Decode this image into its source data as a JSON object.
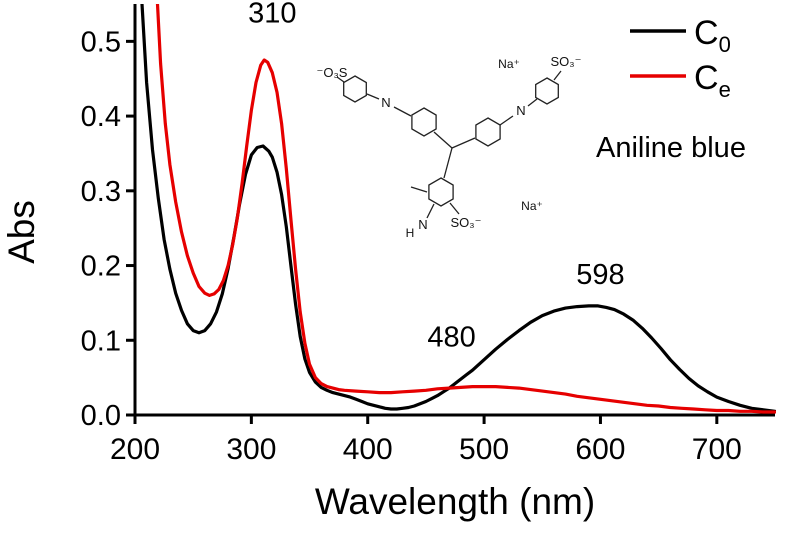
{
  "chart_data": {
    "type": "line",
    "title": "",
    "xlabel": "Wavelength (nm)",
    "ylabel": "Abs",
    "xlim": [
      200,
      750
    ],
    "ylim": [
      0,
      0.55
    ],
    "x_ticks": [
      200,
      300,
      400,
      500,
      600,
      700
    ],
    "y_ticks": [
      0.0,
      0.1,
      0.2,
      0.3,
      0.4,
      0.5
    ],
    "y_tick_labels": [
      "0.0",
      "0.1",
      "0.2",
      "0.3",
      "0.4",
      "0.5"
    ],
    "grid": false,
    "legend": {
      "position": "top-right",
      "note": "Aniline blue"
    },
    "series": [
      {
        "name": "C0",
        "legend_label": "C",
        "legend_sub": "0",
        "color": "#000000",
        "points": [
          [
            200,
            0.85
          ],
          [
            203,
            0.66
          ],
          [
            206,
            0.55
          ],
          [
            210,
            0.445
          ],
          [
            215,
            0.355
          ],
          [
            220,
            0.29
          ],
          [
            225,
            0.235
          ],
          [
            230,
            0.195
          ],
          [
            235,
            0.163
          ],
          [
            240,
            0.14
          ],
          [
            245,
            0.122
          ],
          [
            250,
            0.113
          ],
          [
            255,
            0.11
          ],
          [
            260,
            0.113
          ],
          [
            265,
            0.122
          ],
          [
            270,
            0.138
          ],
          [
            275,
            0.162
          ],
          [
            280,
            0.196
          ],
          [
            285,
            0.238
          ],
          [
            290,
            0.283
          ],
          [
            295,
            0.322
          ],
          [
            300,
            0.348
          ],
          [
            305,
            0.358
          ],
          [
            310,
            0.36
          ],
          [
            315,
            0.353
          ],
          [
            318,
            0.345
          ],
          [
            322,
            0.325
          ],
          [
            326,
            0.295
          ],
          [
            330,
            0.252
          ],
          [
            334,
            0.2
          ],
          [
            338,
            0.148
          ],
          [
            342,
            0.105
          ],
          [
            346,
            0.075
          ],
          [
            350,
            0.057
          ],
          [
            355,
            0.044
          ],
          [
            360,
            0.037
          ],
          [
            365,
            0.033
          ],
          [
            370,
            0.03
          ],
          [
            375,
            0.028
          ],
          [
            380,
            0.026
          ],
          [
            385,
            0.024
          ],
          [
            390,
            0.021
          ],
          [
            395,
            0.018
          ],
          [
            400,
            0.015
          ],
          [
            405,
            0.013
          ],
          [
            410,
            0.011
          ],
          [
            415,
            0.009
          ],
          [
            420,
            0.008
          ],
          [
            425,
            0.008
          ],
          [
            430,
            0.009
          ],
          [
            435,
            0.01
          ],
          [
            440,
            0.012
          ],
          [
            445,
            0.015
          ],
          [
            450,
            0.018
          ],
          [
            455,
            0.022
          ],
          [
            460,
            0.026
          ],
          [
            465,
            0.031
          ],
          [
            470,
            0.036
          ],
          [
            475,
            0.042
          ],
          [
            480,
            0.048
          ],
          [
            485,
            0.054
          ],
          [
            490,
            0.06
          ],
          [
            495,
            0.067
          ],
          [
            500,
            0.074
          ],
          [
            510,
            0.088
          ],
          [
            520,
            0.101
          ],
          [
            530,
            0.113
          ],
          [
            540,
            0.124
          ],
          [
            550,
            0.133
          ],
          [
            560,
            0.139
          ],
          [
            570,
            0.143
          ],
          [
            580,
            0.145
          ],
          [
            590,
            0.146
          ],
          [
            598,
            0.146
          ],
          [
            605,
            0.144
          ],
          [
            612,
            0.141
          ],
          [
            620,
            0.135
          ],
          [
            628,
            0.127
          ],
          [
            636,
            0.116
          ],
          [
            644,
            0.103
          ],
          [
            652,
            0.089
          ],
          [
            660,
            0.074
          ],
          [
            668,
            0.061
          ],
          [
            676,
            0.049
          ],
          [
            684,
            0.039
          ],
          [
            692,
            0.031
          ],
          [
            700,
            0.024
          ],
          [
            710,
            0.018
          ],
          [
            720,
            0.013
          ],
          [
            730,
            0.009
          ],
          [
            740,
            0.007
          ],
          [
            750,
            0.005
          ]
        ]
      },
      {
        "name": "Ce",
        "legend_label": "C",
        "legend_sub": "e",
        "color": "#e60000",
        "points": [
          [
            213,
            0.85
          ],
          [
            216,
            0.68
          ],
          [
            219,
            0.56
          ],
          [
            222,
            0.47
          ],
          [
            226,
            0.39
          ],
          [
            230,
            0.335
          ],
          [
            235,
            0.285
          ],
          [
            240,
            0.245
          ],
          [
            245,
            0.213
          ],
          [
            250,
            0.19
          ],
          [
            255,
            0.172
          ],
          [
            260,
            0.163
          ],
          [
            264,
            0.16
          ],
          [
            268,
            0.162
          ],
          [
            272,
            0.168
          ],
          [
            276,
            0.18
          ],
          [
            280,
            0.2
          ],
          [
            284,
            0.228
          ],
          [
            288,
            0.264
          ],
          [
            292,
            0.31
          ],
          [
            296,
            0.36
          ],
          [
            300,
            0.408
          ],
          [
            304,
            0.445
          ],
          [
            308,
            0.468
          ],
          [
            311,
            0.475
          ],
          [
            314,
            0.472
          ],
          [
            318,
            0.458
          ],
          [
            322,
            0.432
          ],
          [
            326,
            0.39
          ],
          [
            330,
            0.33
          ],
          [
            334,
            0.262
          ],
          [
            338,
            0.195
          ],
          [
            342,
            0.138
          ],
          [
            346,
            0.096
          ],
          [
            350,
            0.068
          ],
          [
            355,
            0.05
          ],
          [
            360,
            0.042
          ],
          [
            365,
            0.038
          ],
          [
            370,
            0.036
          ],
          [
            375,
            0.034
          ],
          [
            380,
            0.033
          ],
          [
            390,
            0.032
          ],
          [
            400,
            0.031
          ],
          [
            410,
            0.03
          ],
          [
            420,
            0.03
          ],
          [
            430,
            0.031
          ],
          [
            440,
            0.032
          ],
          [
            450,
            0.033
          ],
          [
            460,
            0.035
          ],
          [
            470,
            0.036
          ],
          [
            480,
            0.037
          ],
          [
            490,
            0.038
          ],
          [
            500,
            0.038
          ],
          [
            510,
            0.038
          ],
          [
            520,
            0.037
          ],
          [
            530,
            0.036
          ],
          [
            540,
            0.034
          ],
          [
            550,
            0.032
          ],
          [
            560,
            0.03
          ],
          [
            570,
            0.028
          ],
          [
            580,
            0.025
          ],
          [
            590,
            0.023
          ],
          [
            600,
            0.021
          ],
          [
            610,
            0.019
          ],
          [
            620,
            0.017
          ],
          [
            630,
            0.015
          ],
          [
            640,
            0.013
          ],
          [
            650,
            0.012
          ],
          [
            660,
            0.01
          ],
          [
            670,
            0.009
          ],
          [
            680,
            0.008
          ],
          [
            690,
            0.007
          ],
          [
            700,
            0.006
          ],
          [
            710,
            0.006
          ],
          [
            720,
            0.005
          ],
          [
            730,
            0.005
          ],
          [
            740,
            0.004
          ],
          [
            750,
            0.004
          ]
        ]
      }
    ],
    "annotations": [
      {
        "text": "310",
        "x": 318,
        "y": 0.525,
        "color": "#000000"
      },
      {
        "text": "598",
        "x": 600,
        "y": 0.175,
        "color": "#000000"
      },
      {
        "text": "480",
        "x": 472,
        "y": 0.092,
        "color": "#e60000"
      }
    ]
  },
  "molecule": {
    "name": "Aniline blue",
    "labels": {
      "so3_left": "⁻O₃S",
      "n_left": "N",
      "na1": "Na⁺",
      "so3_topright": "SO₃⁻",
      "n_right": "N",
      "so3_bottom": "SO₃⁻",
      "n_bottom": "N",
      "h_bottom": "H",
      "na2": "Na⁺"
    }
  }
}
